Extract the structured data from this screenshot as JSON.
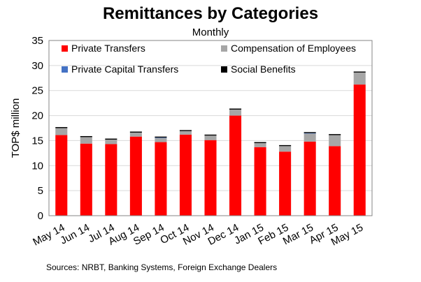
{
  "header": {
    "title": "Remittances by Categories",
    "subtitle": "Monthly"
  },
  "footer": {
    "source": "Sources: NRBT, Banking Systems, Foreign Exchange Dealers"
  },
  "colors": {
    "Private Transfers": "#ff0000",
    "Compensation of Employees": "#a6a6a6",
    "Private Capital Transfers": "#4472c4",
    "Social Benefits": "#000000",
    "grid": "#d9d9d9",
    "axis": "#868686"
  },
  "chart_data": {
    "type": "bar",
    "stacked": true,
    "title": "Remittances by Categories",
    "subtitle": "Monthly",
    "xlabel": "",
    "ylabel": "TOP$ million",
    "ylim": [
      0,
      35
    ],
    "yticks": [
      0,
      5,
      10,
      15,
      20,
      25,
      30,
      35
    ],
    "grid": true,
    "legend_position": "top",
    "categories": [
      "May 14",
      "Jun 14",
      "Jul 14",
      "Aug 14",
      "Sep 14",
      "Oct 14",
      "Nov 14",
      "Dec 14",
      "Jan 15",
      "Feb 15",
      "Mar 15",
      "Apr 15",
      "May 15"
    ],
    "series": [
      {
        "name": "Private Transfers",
        "values": [
          16.1,
          14.4,
          14.3,
          15.8,
          14.7,
          16.2,
          15.1,
          20.0,
          13.7,
          12.8,
          14.8,
          13.9,
          26.2
        ]
      },
      {
        "name": "Compensation of Employees",
        "values": [
          1.4,
          1.3,
          0.9,
          0.8,
          0.8,
          0.7,
          0.9,
          1.2,
          0.8,
          1.1,
          1.6,
          2.2,
          2.4
        ]
      },
      {
        "name": "Private Capital Transfers",
        "values": [
          0.0,
          0.0,
          0.0,
          0.0,
          0.1,
          0.0,
          0.0,
          0.0,
          0.0,
          0.0,
          0.1,
          0.0,
          0.0
        ]
      },
      {
        "name": "Social Benefits",
        "values": [
          0.2,
          0.2,
          0.2,
          0.2,
          0.2,
          0.2,
          0.2,
          0.2,
          0.2,
          0.2,
          0.2,
          0.2,
          0.2
        ]
      }
    ]
  }
}
